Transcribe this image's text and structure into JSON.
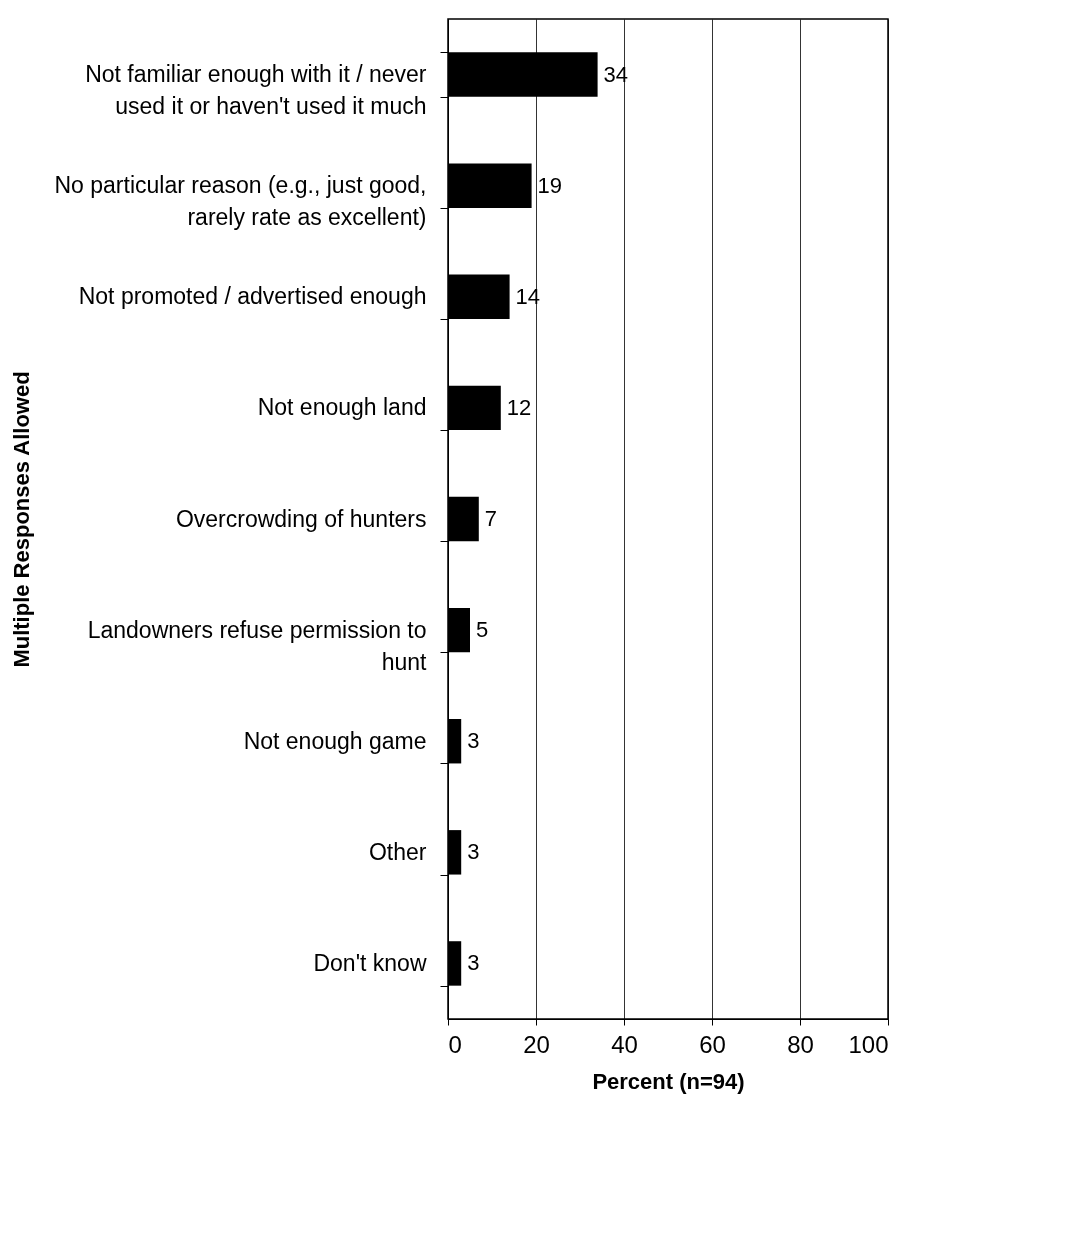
{
  "chart_data": {
    "type": "bar",
    "orientation": "horizontal",
    "xlabel": "Percent (n=94)",
    "ylabel": "Multiple Responses Allowed",
    "categories": [
      "Not familiar enough with it / never\nused it or haven't used it much",
      "No particular reason (e.g., just good,\nrarely rate as excellent)",
      "Not promoted / advertised enough",
      "Not enough land",
      "Overcrowding of hunters",
      "Landowners refuse permission to\nhunt",
      "Not enough game",
      "Other",
      "Don't know"
    ],
    "values": [
      34,
      19,
      14,
      12,
      7,
      5,
      3,
      3,
      3
    ],
    "color": "#000000",
    "xlim": [
      0,
      100
    ],
    "xticks": [
      0,
      20,
      40,
      60,
      80,
      100
    ],
    "grid": "x",
    "data_labels": true
  }
}
